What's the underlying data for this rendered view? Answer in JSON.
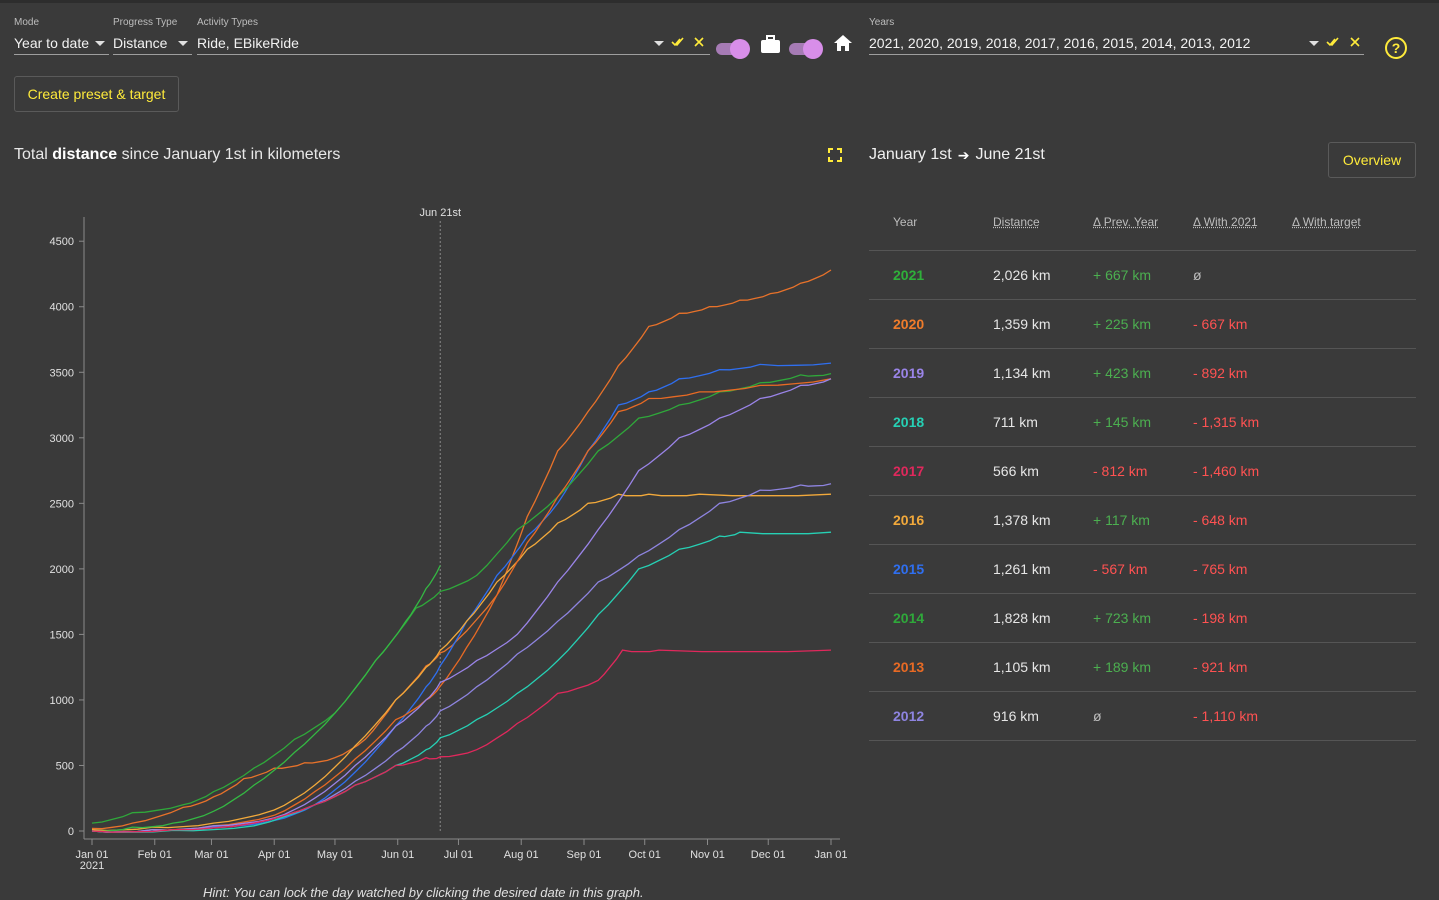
{
  "filters": {
    "mode": {
      "label": "Mode",
      "value": "Year to date"
    },
    "progress_type": {
      "label": "Progress Type",
      "value": "Distance"
    },
    "activity_types": {
      "label": "Activity Types",
      "value": "Ride, EBikeRide"
    },
    "years": {
      "label": "Years",
      "value": "2021, 2020, 2019, 2018, 2017, 2016, 2015, 2014, 2013, 2012"
    }
  },
  "buttons": {
    "create_preset": "Create preset & target",
    "overview": "Overview",
    "help": "?"
  },
  "chart_title": {
    "prefix": "Total ",
    "metric": "distance",
    "suffix": " since January 1st in kilometers"
  },
  "hint": "Hint: You can lock the day watched by clicking the desired date in this graph.",
  "period": {
    "from": "January 1st",
    "to": "June 21st"
  },
  "table": {
    "headers": {
      "year": "Year",
      "distance": "Distance",
      "prev": "Δ Prev. Year",
      "with_year": "Δ With 2021",
      "target": "Δ With target"
    },
    "rows": [
      {
        "year": "2021",
        "color": "#2fb03a",
        "distance": "2,026 km",
        "prev": "+ 667 km",
        "with": "ø"
      },
      {
        "year": "2020",
        "color": "#f07c2b",
        "distance": "1,359 km",
        "prev": "+ 225 km",
        "with": "- 667 km"
      },
      {
        "year": "2019",
        "color": "#9a84e8",
        "distance": "1,134 km",
        "prev": "+ 423 km",
        "with": "- 892 km"
      },
      {
        "year": "2018",
        "color": "#26d0b4",
        "distance": "711 km",
        "prev": "+ 145 km",
        "with": "- 1,315 km"
      },
      {
        "year": "2017",
        "color": "#e0285c",
        "distance": "566 km",
        "prev": "- 812 km",
        "with": "- 1,460 km"
      },
      {
        "year": "2016",
        "color": "#f2a93b",
        "distance": "1,378 km",
        "prev": "+ 117 km",
        "with": "- 648 km"
      },
      {
        "year": "2015",
        "color": "#2f6ff0",
        "distance": "1,261 km",
        "prev": "- 567 km",
        "with": "- 765 km"
      },
      {
        "year": "2014",
        "color": "#2fa83a",
        "distance": "1,828 km",
        "prev": "+ 723 km",
        "with": "- 198 km"
      },
      {
        "year": "2013",
        "color": "#e86a24",
        "distance": "1,105 km",
        "prev": "+ 189 km",
        "with": "- 921 km"
      },
      {
        "year": "2012",
        "color": "#8e84e0",
        "distance": "916 km",
        "prev": "ø",
        "with": "- 1,110 km"
      }
    ]
  },
  "chart_data": {
    "type": "line",
    "title": "Total distance since January 1st in kilometers",
    "xlabel": "",
    "ylabel": "",
    "x_ticks": [
      "Jan 01",
      "Feb 01",
      "Mar 01",
      "Apr 01",
      "May 01",
      "Jun 01",
      "Jul 01",
      "Aug 01",
      "Sep 01",
      "Oct 01",
      "Nov 01",
      "Dec 01",
      "Jan 01"
    ],
    "x_tick_sub": "2021",
    "y_ticks": [
      0,
      500,
      1000,
      1500,
      2000,
      2500,
      3000,
      3500,
      4000,
      4500
    ],
    "ylim": [
      0,
      4700
    ],
    "marker": {
      "label": "Jun 21st",
      "day": 172
    },
    "series": [
      {
        "name": "2020",
        "color": "#e8722a",
        "days": [
          0,
          20,
          45,
          60,
          75,
          90,
          105,
          120,
          135,
          150,
          165,
          172,
          180,
          200,
          215,
          230,
          245,
          260,
          275,
          290,
          305,
          320,
          335,
          350,
          365
        ],
        "values": [
          20,
          60,
          180,
          260,
          400,
          480,
          520,
          560,
          700,
          1000,
          1260,
          1359,
          1450,
          1800,
          2400,
          2900,
          3200,
          3550,
          3850,
          3950,
          4000,
          4050,
          4100,
          4180,
          4280
        ]
      },
      {
        "name": "2015",
        "color": "#2f6ff0",
        "days": [
          0,
          30,
          60,
          90,
          110,
          130,
          150,
          165,
          172,
          185,
          200,
          215,
          230,
          245,
          260,
          275,
          290,
          310,
          330,
          365
        ],
        "values": [
          0,
          10,
          30,
          80,
          200,
          450,
          800,
          1100,
          1261,
          1600,
          1950,
          2250,
          2500,
          2900,
          3250,
          3350,
          3450,
          3520,
          3560,
          3570
        ]
      },
      {
        "name": "2014",
        "color": "#2fa83a",
        "days": [
          0,
          20,
          45,
          60,
          80,
          100,
          120,
          140,
          160,
          172,
          190,
          210,
          230,
          250,
          270,
          290,
          310,
          330,
          350,
          365
        ],
        "values": [
          60,
          140,
          200,
          300,
          480,
          700,
          900,
          1300,
          1700,
          1828,
          1950,
          2300,
          2550,
          2900,
          3150,
          3250,
          3350,
          3420,
          3480,
          3490
        ]
      },
      {
        "name": "2016",
        "color": "#f2a93b",
        "days": [
          0,
          30,
          60,
          90,
          110,
          130,
          150,
          165,
          172,
          185,
          200,
          215,
          230,
          245,
          260,
          275,
          300,
          365
        ],
        "values": [
          10,
          30,
          60,
          160,
          350,
          650,
          1000,
          1250,
          1378,
          1600,
          1900,
          2150,
          2350,
          2500,
          2570,
          2570,
          2570,
          2570
        ]
      },
      {
        "name": "2013",
        "color": "#e86a24",
        "days": [
          0,
          30,
          60,
          90,
          110,
          130,
          150,
          165,
          172,
          185,
          200,
          215,
          230,
          245,
          260,
          275,
          300,
          330,
          365
        ],
        "values": [
          0,
          10,
          40,
          120,
          300,
          550,
          850,
          1000,
          1105,
          1400,
          1800,
          2200,
          2550,
          2900,
          3200,
          3300,
          3350,
          3400,
          3450
        ]
      },
      {
        "name": "2021",
        "color": "#34b843",
        "days": [
          0,
          20,
          40,
          60,
          80,
          100,
          120,
          140,
          155,
          165,
          172
        ],
        "values": [
          0,
          30,
          60,
          150,
          350,
          600,
          900,
          1300,
          1600,
          1850,
          2026
        ]
      },
      {
        "name": "2019",
        "color": "#9a84e8",
        "days": [
          0,
          30,
          60,
          90,
          110,
          130,
          150,
          165,
          172,
          190,
          210,
          230,
          250,
          270,
          290,
          310,
          330,
          350,
          365
        ],
        "values": [
          0,
          10,
          40,
          100,
          250,
          500,
          800,
          1000,
          1134,
          1300,
          1500,
          1900,
          2300,
          2750,
          3000,
          3150,
          3300,
          3400,
          3450
        ]
      },
      {
        "name": "2012",
        "color": "#8e84e0",
        "days": [
          0,
          40,
          80,
          110,
          130,
          150,
          165,
          172,
          190,
          210,
          230,
          250,
          270,
          290,
          310,
          330,
          350,
          365
        ],
        "values": [
          0,
          10,
          60,
          200,
          380,
          600,
          800,
          916,
          1100,
          1350,
          1600,
          1900,
          2100,
          2300,
          2500,
          2600,
          2640,
          2650
        ]
      },
      {
        "name": "2018",
        "color": "#26d0b4",
        "days": [
          0,
          40,
          80,
          110,
          130,
          150,
          165,
          172,
          190,
          210,
          230,
          250,
          270,
          290,
          310,
          320,
          365
        ],
        "values": [
          0,
          5,
          40,
          200,
          350,
          500,
          620,
          711,
          850,
          1050,
          1300,
          1650,
          2000,
          2150,
          2250,
          2280,
          2280
        ]
      },
      {
        "name": "2017",
        "color": "#e0285c",
        "days": [
          0,
          40,
          80,
          110,
          130,
          150,
          165,
          172,
          190,
          210,
          230,
          250,
          262,
          280,
          365
        ],
        "values": [
          0,
          10,
          60,
          200,
          350,
          500,
          560,
          566,
          620,
          820,
          1050,
          1150,
          1380,
          1380,
          1380
        ]
      }
    ]
  }
}
